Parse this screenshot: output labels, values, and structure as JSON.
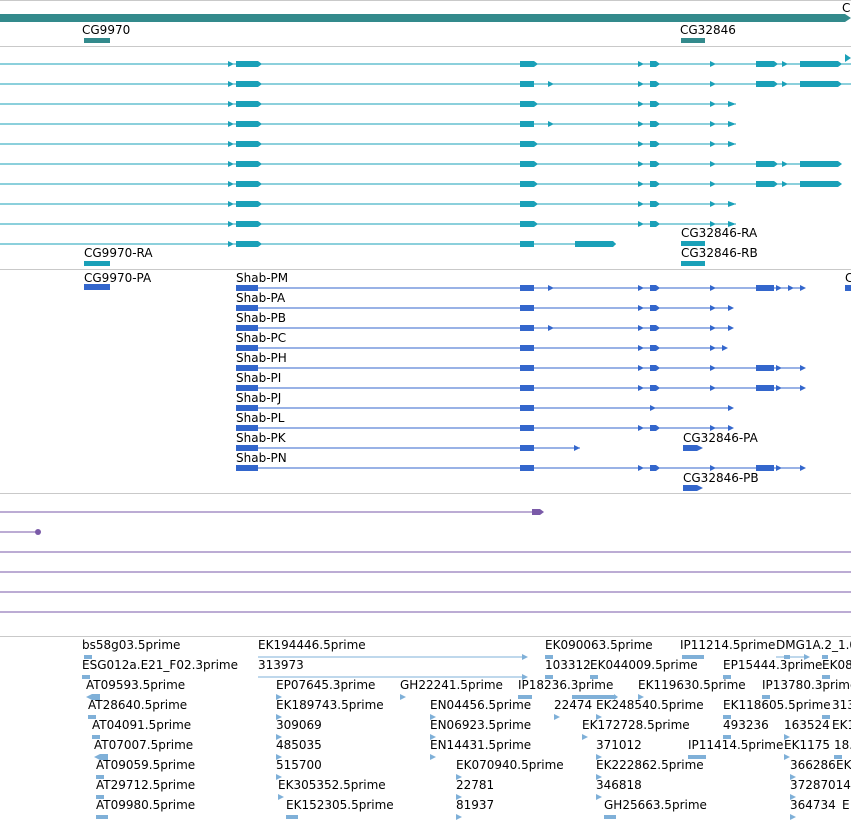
{
  "colors": {
    "gene": "#338a8c",
    "transcript": "#1aa0b8",
    "protein": "#3366cc",
    "variant": "#7a5aa8",
    "est": "#7fb0d8"
  },
  "gene_track": {
    "labels": [
      "CG9970",
      "CG32846",
      "C"
    ]
  },
  "transcript_track": {
    "labels": [
      "CG9970-RA",
      "CG32846-RA",
      "CG32846-RB"
    ]
  },
  "protein_track": {
    "labels": [
      "CG9970-PA",
      "CG32846-PA",
      "CG32846-PB",
      "C"
    ],
    "isoforms": [
      "Shab-PM",
      "Shab-PA",
      "Shab-PB",
      "Shab-PC",
      "Shab-PH",
      "Shab-PI",
      "Shab-PJ",
      "Shab-PL",
      "Shab-PK",
      "Shab-PN"
    ]
  },
  "est_track": {
    "labels": [
      "bs58g03.5prime",
      "EK194446.5prime",
      "EK090063.5prime",
      "IP11214.5prime",
      "DMG1A.2_1.0",
      "ESG012a.E21_F02.3prime",
      "313973",
      "103312",
      "EK044009.5prime",
      "EP15444.3prime",
      "EK08",
      "AT09593.5prime",
      "EP07645.3prime",
      "GH22241.5prime",
      "IP18236.3prime",
      "EK119630.5prime",
      "IP13780.3prime",
      "AT28640.5prime",
      "EK189743.5prime",
      "EN04456.5prime",
      "22474",
      "EK248540.5prime",
      "EK118605.5prime",
      "313",
      "AT04091.5prime",
      "309069",
      "EN06923.5prime",
      "EK172728.5prime",
      "493236",
      "163524",
      "EK1",
      "AT07007.5prime",
      "485035",
      "EN14431.5prime",
      "371012",
      "IP11414.5prime",
      "EK1175",
      "18.",
      "AT09059.5prime",
      "515700",
      "EK070940.5prime",
      "EK222862.5prime",
      "366286",
      "EK",
      "AT29712.5prime",
      "EK305352.5prime",
      "22781",
      "346818",
      "37287",
      "014",
      "AT09980.5prime",
      "EK152305.5prime",
      "81937",
      "GH25663.5prime",
      "364734",
      "E"
    ]
  }
}
